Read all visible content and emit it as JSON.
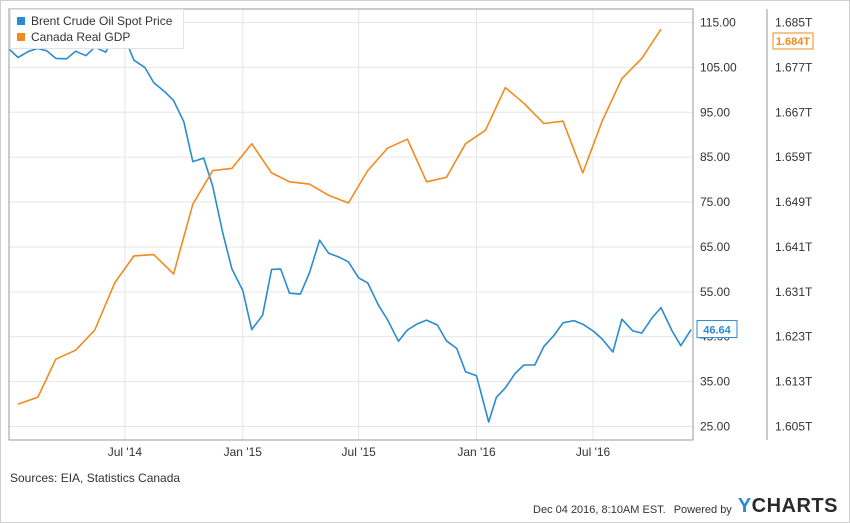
{
  "chart_data": {
    "type": "line",
    "x_ticks": [
      "Jul '14",
      "Jan '15",
      "Jul '15",
      "Jan '16",
      "Jul '16"
    ],
    "x_range": [
      "2014-01-01",
      "2016-12-04"
    ],
    "left_axis": {
      "tick_labels": [
        "115.00",
        "105.00",
        "95.00",
        "85.00",
        "75.00",
        "65.00",
        "55.00",
        "45.00",
        "35.00",
        "25.00"
      ],
      "range": [
        22,
        118
      ]
    },
    "right_axis": {
      "tick_labels": [
        "1.685T",
        "1.677T",
        "1.667T",
        "1.659T",
        "1.649T",
        "1.641T",
        "1.631T",
        "1.623T",
        "1.613T",
        "1.605T"
      ]
    },
    "series": [
      {
        "name": "Brent Crude Oil Spot Price",
        "color": "#2a8bd0",
        "axis": "left",
        "end_label": "46.64",
        "points": [
          [
            "2014-01-02",
            109.0
          ],
          [
            "2014-01-15",
            107.2
          ],
          [
            "2014-02-01",
            108.6
          ],
          [
            "2014-02-15",
            109.2
          ],
          [
            "2014-03-01",
            108.7
          ],
          [
            "2014-03-15",
            107.0
          ],
          [
            "2014-04-01",
            106.9
          ],
          [
            "2014-04-15",
            108.6
          ],
          [
            "2014-05-01",
            107.6
          ],
          [
            "2014-05-15",
            109.5
          ],
          [
            "2014-06-01",
            108.4
          ],
          [
            "2014-06-15",
            112.2
          ],
          [
            "2014-07-01",
            111.5
          ],
          [
            "2014-07-15",
            106.6
          ],
          [
            "2014-08-01",
            105.0
          ],
          [
            "2014-08-15",
            101.6
          ],
          [
            "2014-09-01",
            99.6
          ],
          [
            "2014-09-15",
            97.6
          ],
          [
            "2014-10-01",
            92.9
          ],
          [
            "2014-10-15",
            84.0
          ],
          [
            "2014-11-01",
            84.8
          ],
          [
            "2014-11-15",
            78.5
          ],
          [
            "2014-12-01",
            68.0
          ],
          [
            "2014-12-15",
            60.1
          ],
          [
            "2015-01-01",
            55.3
          ],
          [
            "2015-01-15",
            46.6
          ],
          [
            "2015-02-01",
            49.8
          ],
          [
            "2015-02-15",
            60.0
          ],
          [
            "2015-03-01",
            60.1
          ],
          [
            "2015-03-15",
            54.7
          ],
          [
            "2015-04-01",
            54.5
          ],
          [
            "2015-04-15",
            59.2
          ],
          [
            "2015-05-01",
            66.5
          ],
          [
            "2015-05-15",
            63.6
          ],
          [
            "2015-06-01",
            62.7
          ],
          [
            "2015-06-15",
            61.7
          ],
          [
            "2015-07-01",
            58.1
          ],
          [
            "2015-07-15",
            57.0
          ],
          [
            "2015-08-01",
            52.0
          ],
          [
            "2015-08-15",
            48.8
          ],
          [
            "2015-09-01",
            44.0
          ],
          [
            "2015-09-15",
            46.5
          ],
          [
            "2015-10-01",
            47.9
          ],
          [
            "2015-10-15",
            48.7
          ],
          [
            "2015-11-01",
            47.6
          ],
          [
            "2015-11-15",
            44.1
          ],
          [
            "2015-12-01",
            42.4
          ],
          [
            "2015-12-15",
            37.2
          ],
          [
            "2016-01-01",
            36.3
          ],
          [
            "2016-01-20",
            26.0
          ],
          [
            "2016-02-01",
            31.5
          ],
          [
            "2016-02-15",
            33.6
          ],
          [
            "2016-03-01",
            36.8
          ],
          [
            "2016-03-15",
            38.7
          ],
          [
            "2016-04-01",
            38.7
          ],
          [
            "2016-04-15",
            42.8
          ],
          [
            "2016-05-01",
            45.3
          ],
          [
            "2016-05-15",
            48.1
          ],
          [
            "2016-06-01",
            48.6
          ],
          [
            "2016-06-15",
            47.8
          ],
          [
            "2016-07-01",
            46.3
          ],
          [
            "2016-07-15",
            44.5
          ],
          [
            "2016-08-01",
            41.6
          ],
          [
            "2016-08-15",
            48.9
          ],
          [
            "2016-09-01",
            46.3
          ],
          [
            "2016-09-15",
            45.8
          ],
          [
            "2016-10-01",
            49.2
          ],
          [
            "2016-10-15",
            51.5
          ],
          [
            "2016-11-01",
            46.4
          ],
          [
            "2016-11-15",
            43.0
          ],
          [
            "2016-12-01",
            46.6
          ]
        ]
      },
      {
        "name": "Canada Real GDP",
        "color": "#f28a1e",
        "axis": "right",
        "end_label": "1.684T",
        "points": [
          [
            "2014-01-15",
            30.0
          ],
          [
            "2014-02-15",
            31.5
          ],
          [
            "2014-03-15",
            40.0
          ],
          [
            "2014-04-15",
            42.0
          ],
          [
            "2014-05-15",
            46.5
          ],
          [
            "2014-06-15",
            57.0
          ],
          [
            "2014-07-15",
            63.0
          ],
          [
            "2014-08-15",
            63.3
          ],
          [
            "2014-09-15",
            59.0
          ],
          [
            "2014-10-15",
            74.5
          ],
          [
            "2014-11-15",
            82.0
          ],
          [
            "2014-12-15",
            82.5
          ],
          [
            "2015-01-15",
            88.0
          ],
          [
            "2015-02-15",
            81.5
          ],
          [
            "2015-03-15",
            79.5
          ],
          [
            "2015-04-15",
            79.0
          ],
          [
            "2015-05-15",
            76.5
          ],
          [
            "2015-06-15",
            74.8
          ],
          [
            "2015-07-15",
            82.0
          ],
          [
            "2015-08-15",
            87.0
          ],
          [
            "2015-09-15",
            89.0
          ],
          [
            "2015-10-15",
            79.5
          ],
          [
            "2015-11-15",
            80.5
          ],
          [
            "2015-12-15",
            88.0
          ],
          [
            "2016-01-15",
            91.0
          ],
          [
            "2016-02-15",
            100.5
          ],
          [
            "2016-03-15",
            97.0
          ],
          [
            "2016-04-15",
            92.5
          ],
          [
            "2016-05-15",
            93.0
          ],
          [
            "2016-06-15",
            81.5
          ],
          [
            "2016-07-15",
            93.0
          ],
          [
            "2016-08-15",
            102.5
          ],
          [
            "2016-09-15",
            107.0
          ],
          [
            "2016-10-15",
            113.5
          ]
        ]
      }
    ],
    "grid": true,
    "legend": "top-left"
  },
  "footer": {
    "sources": "Sources: EIA, Statistics Canada",
    "timestamp": "Dec 04 2016, 8:10AM EST.",
    "powered_by": "Powered by",
    "logo_y": "Y",
    "logo_rest": "CHARTS"
  }
}
